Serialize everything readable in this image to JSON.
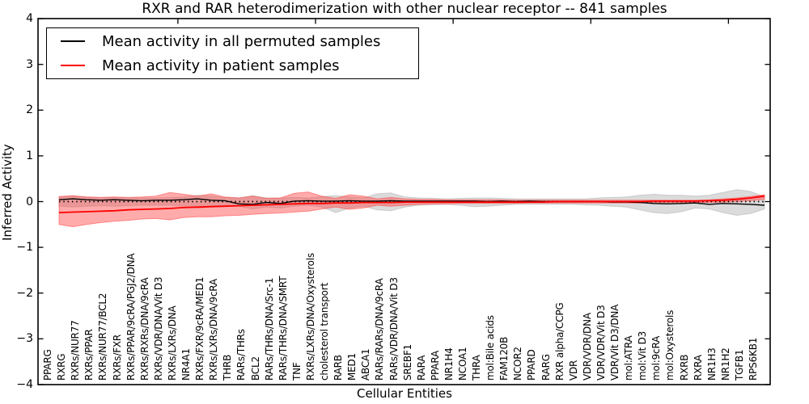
{
  "chart_data": {
    "type": "line",
    "title": "RXR and RAR heterodimerization with other nuclear receptor -- 841 samples",
    "xlabel": "Cellular Entities",
    "ylabel": "Inferred Activity",
    "ylim": [
      -4,
      4
    ],
    "yticks": [
      4,
      3,
      2,
      1,
      0,
      -1,
      -2,
      -3,
      -4
    ],
    "grid": false,
    "legend_position": "upper left",
    "zero_line_style": "dotted",
    "categories": [
      "PPARG",
      "RXRG",
      "RXRs/NUR77",
      "RXRs/PPAR",
      "RXRs/NUR77/BCL2",
      "RXRs/FXR",
      "RXRs/PPAR/9cRA/PGJ2/DNA",
      "RXRs/RXRs/DNA/9cRA",
      "RXRs/VDR/DNA/Vit D3",
      "RXRs/LXRs/DNA",
      "NR4A1",
      "RXRs/FXR/9cRA/MED1",
      "RXRs/LXRs/DNA/9cRA",
      "THRB",
      "RARs/THRs",
      "BCL2",
      "RARs/THRs/DNA/Src-1",
      "RARs/THRs/DNA/SMRT",
      "TNF",
      "RXRs/LXRs/DNA/Oxysterols",
      "cholesterol transport",
      "RARB",
      "MED1",
      "ABCA1",
      "RARs/RARs/DNA/9cRA",
      "RARs/VDR/DNA/Vit D3",
      "SREBF1",
      "RARA",
      "PPARA",
      "NR1H4",
      "NCOA1",
      "THRA",
      "mol:Bile acids",
      "FAM120B",
      "NCOR2",
      "PPARD",
      "RARG",
      "RXR alpha/CCPG",
      "VDR",
      "VDR/VDR/DNA",
      "VDR/VDR/Vit D3",
      "VDR/Vit D3/DNA",
      "mol:ATRA",
      "mol:Vit D3",
      "mol:9cRA",
      "mol:Oxysterols",
      "RXRB",
      "RXRA",
      "NR1H3",
      "NR1H2",
      "TGFB1",
      "RPS6KB1"
    ],
    "series": [
      {
        "name": "Mean activity in all permuted samples",
        "color": "#000000",
        "band_color": "#b0b0b0",
        "band_opacity": 0.45,
        "values": [
          0.04,
          0.06,
          0.04,
          0.03,
          0.04,
          0.03,
          0.02,
          0.03,
          0.03,
          0.04,
          0.06,
          0.03,
          0.02,
          -0.05,
          -0.06,
          -0.02,
          -0.04,
          0.01,
          0.02,
          0.01,
          0.01,
          0.02,
          0.01,
          0.01,
          0.02,
          0.01,
          0.01,
          0.01,
          0.01,
          0.01,
          0.01,
          0.0,
          0.01,
          0.0,
          0.01,
          0.0,
          0.0,
          0.0,
          0.0,
          0.0,
          -0.01,
          -0.01,
          -0.02,
          -0.04,
          -0.05,
          -0.04,
          -0.03,
          -0.06,
          -0.04,
          -0.05,
          -0.06,
          -0.08
        ],
        "band_hi": [
          0.1,
          0.12,
          0.1,
          0.09,
          0.09,
          0.08,
          0.08,
          0.08,
          0.09,
          0.1,
          0.14,
          0.12,
          0.09,
          0.08,
          0.13,
          0.08,
          0.08,
          0.09,
          0.08,
          0.11,
          0.13,
          0.1,
          0.08,
          0.17,
          0.19,
          0.1,
          0.08,
          0.07,
          0.06,
          0.07,
          0.08,
          0.08,
          0.07,
          0.06,
          0.06,
          0.06,
          0.06,
          0.06,
          0.06,
          0.08,
          0.09,
          0.1,
          0.14,
          0.16,
          0.14,
          0.14,
          0.12,
          0.14,
          0.2,
          0.26,
          0.22,
          0.1
        ],
        "band_lo": [
          -0.1,
          -0.12,
          -0.1,
          -0.09,
          -0.1,
          -0.09,
          -0.08,
          -0.08,
          -0.08,
          -0.1,
          -0.14,
          -0.12,
          -0.09,
          -0.1,
          -0.16,
          -0.12,
          -0.14,
          -0.1,
          -0.08,
          -0.12,
          -0.24,
          -0.14,
          -0.1,
          -0.18,
          -0.2,
          -0.12,
          -0.08,
          -0.07,
          -0.06,
          -0.08,
          -0.11,
          -0.1,
          -0.08,
          -0.06,
          -0.06,
          -0.06,
          -0.06,
          -0.06,
          -0.07,
          -0.08,
          -0.1,
          -0.12,
          -0.18,
          -0.24,
          -0.26,
          -0.22,
          -0.14,
          -0.16,
          -0.24,
          -0.3,
          -0.26,
          -0.16
        ]
      },
      {
        "name": "Mean activity in patient samples",
        "color": "#ff0000",
        "band_color": "#ff4545",
        "band_opacity": 0.45,
        "values": [
          -0.24,
          -0.23,
          -0.22,
          -0.21,
          -0.2,
          -0.18,
          -0.17,
          -0.16,
          -0.15,
          -0.13,
          -0.12,
          -0.11,
          -0.1,
          -0.09,
          -0.08,
          -0.07,
          -0.06,
          -0.05,
          -0.04,
          -0.04,
          -0.03,
          -0.03,
          -0.02,
          -0.02,
          -0.02,
          -0.01,
          -0.01,
          -0.01,
          -0.01,
          -0.01,
          -0.01,
          -0.01,
          -0.01,
          -0.01,
          -0.01,
          -0.01,
          0.0,
          0.0,
          0.0,
          0.0,
          0.0,
          0.0,
          0.0,
          0.01,
          0.01,
          0.01,
          0.01,
          0.02,
          0.03,
          0.05,
          0.08,
          0.12
        ],
        "band_hi": [
          0.11,
          0.13,
          0.1,
          0.09,
          0.1,
          0.09,
          0.1,
          0.12,
          0.2,
          0.16,
          0.12,
          0.17,
          0.1,
          0.08,
          0.12,
          0.07,
          0.08,
          0.18,
          0.21,
          0.12,
          0.07,
          0.15,
          0.12,
          0.06,
          0.09,
          0.06,
          0.05,
          0.05,
          0.04,
          0.04,
          0.04,
          0.04,
          0.04,
          0.03,
          0.03,
          0.03,
          0.03,
          0.03,
          0.03,
          0.03,
          0.03,
          0.03,
          0.03,
          0.03,
          0.03,
          0.03,
          0.03,
          0.04,
          0.06,
          0.08,
          0.11,
          0.15
        ],
        "band_lo": [
          -0.5,
          -0.55,
          -0.5,
          -0.46,
          -0.43,
          -0.41,
          -0.38,
          -0.37,
          -0.4,
          -0.35,
          -0.33,
          -0.33,
          -0.31,
          -0.3,
          -0.28,
          -0.26,
          -0.25,
          -0.23,
          -0.21,
          -0.16,
          -0.12,
          -0.17,
          -0.14,
          -0.08,
          -0.1,
          -0.08,
          -0.06,
          -0.05,
          -0.05,
          -0.04,
          -0.04,
          -0.04,
          -0.04,
          -0.04,
          -0.03,
          -0.03,
          -0.03,
          -0.03,
          -0.03,
          -0.03,
          -0.03,
          -0.03,
          -0.03,
          -0.02,
          -0.02,
          -0.02,
          -0.02,
          -0.02,
          -0.01,
          0.0,
          0.02,
          0.05
        ]
      }
    ]
  }
}
